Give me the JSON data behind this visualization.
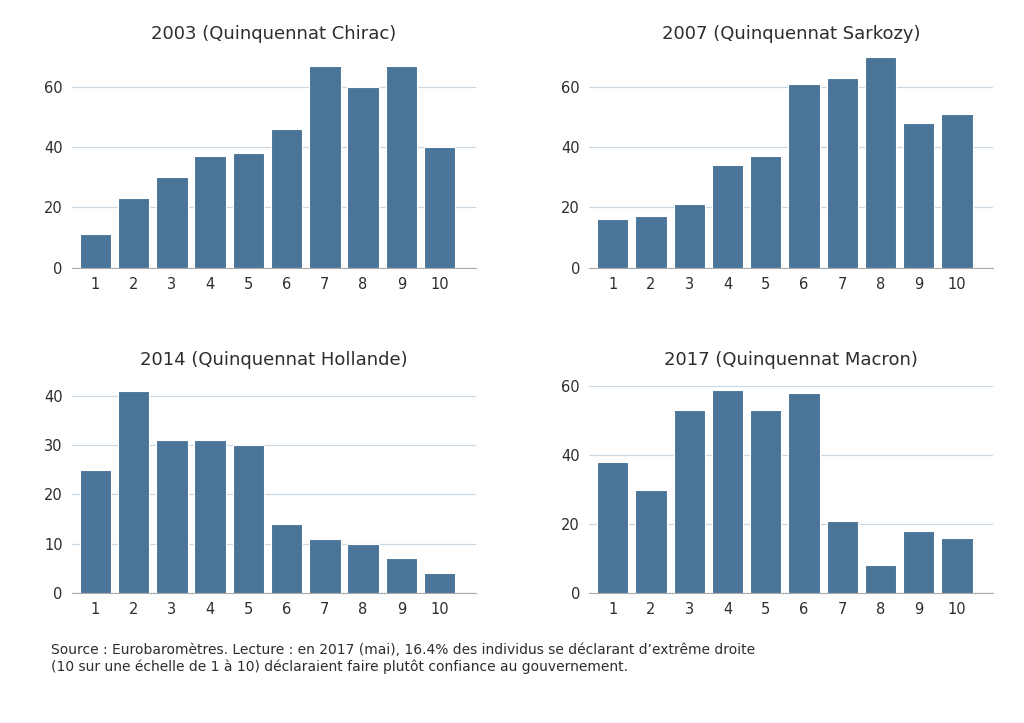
{
  "panels": [
    {
      "title": "2003 (Quinquennat Chirac)",
      "values": [
        11,
        23,
        30,
        37,
        38,
        46,
        67,
        60,
        67,
        40
      ],
      "ylim": [
        0,
        72
      ],
      "yticks": [
        0,
        20,
        40,
        60
      ]
    },
    {
      "title": "2007 (Quinquennat Sarkozy)",
      "values": [
        16,
        17,
        21,
        34,
        37,
        61,
        63,
        70,
        48,
        51
      ],
      "ylim": [
        0,
        72
      ],
      "yticks": [
        0,
        20,
        40,
        60
      ]
    },
    {
      "title": "2014 (Quinquennat Hollande)",
      "values": [
        25,
        41,
        31,
        31,
        30,
        14,
        11,
        10,
        7,
        4
      ],
      "ylim": [
        0,
        44
      ],
      "yticks": [
        0,
        10,
        20,
        30,
        40
      ]
    },
    {
      "title": "2017 (Quinquennat Macron)",
      "values": [
        38,
        30,
        53,
        59,
        53,
        58,
        21,
        8,
        18,
        16
      ],
      "ylim": [
        0,
        63
      ],
      "yticks": [
        0,
        20,
        40,
        60
      ]
    }
  ],
  "bar_color": "#4a7498",
  "bar_edge_color": "white",
  "background_color": "#ffffff",
  "grid_color": "#ccd9e3",
  "source_text": "Source : Eurobaromètres. Lecture : en 2017 (mai), 16.4% des individus se déclarant d’extrême droite\n(10 sur une échelle de 1 à 10) déclaraient faire plutôt confiance au gouvernement.",
  "title_fontsize": 13,
  "tick_fontsize": 10.5,
  "source_fontsize": 10,
  "bar_width": 0.82
}
